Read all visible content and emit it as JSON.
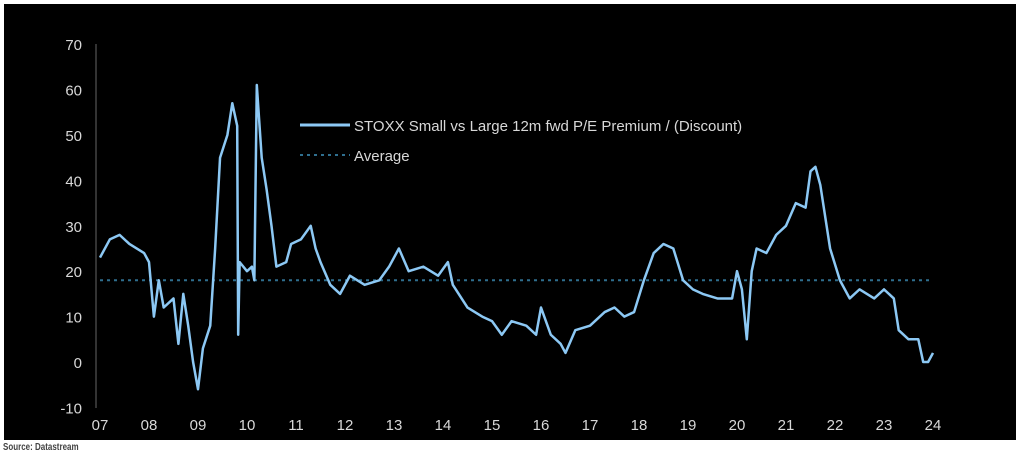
{
  "chart_data": {
    "type": "line",
    "title": "",
    "xlabel": "",
    "ylabel": "",
    "ylim": [
      -10,
      70
    ],
    "yticks": [
      "70",
      "60",
      "50",
      "40",
      "30",
      "20",
      "10",
      "0",
      "-10"
    ],
    "xticks": [
      "07",
      "08",
      "09",
      "10",
      "11",
      "12",
      "13",
      "14",
      "15",
      "16",
      "17",
      "18",
      "19",
      "20",
      "21",
      "22",
      "23",
      "24"
    ],
    "xlim": [
      2007,
      2024
    ],
    "legend": {
      "placement": "top-center",
      "entries": [
        "STOXX Small vs Large 12m fwd P/E Premium / (Discount)",
        "Average"
      ]
    },
    "series": [
      {
        "name": "STOXX Small vs Large 12m fwd P/E Premium / (Discount)",
        "color": "#8cc8f4",
        "x": [
          2007.0,
          2007.2,
          2007.4,
          2007.6,
          2007.9,
          2008.0,
          2008.1,
          2008.2,
          2008.3,
          2008.5,
          2008.6,
          2008.7,
          2008.8,
          2008.9,
          2009.0,
          2009.1,
          2009.25,
          2009.35,
          2009.45,
          2009.6,
          2009.7,
          2009.8,
          2009.82,
          2009.85,
          2010.0,
          2010.1,
          2010.15,
          2010.2,
          2010.3,
          2010.4,
          2010.5,
          2010.6,
          2010.8,
          2010.9,
          2011.1,
          2011.3,
          2011.4,
          2011.5,
          2011.7,
          2011.9,
          2012.1,
          2012.4,
          2012.7,
          2012.9,
          2013.1,
          2013.3,
          2013.6,
          2013.9,
          2014.1,
          2014.2,
          2014.5,
          2014.8,
          2015.0,
          2015.2,
          2015.4,
          2015.7,
          2015.9,
          2016.0,
          2016.2,
          2016.4,
          2016.5,
          2016.7,
          2017.0,
          2017.3,
          2017.5,
          2017.7,
          2017.9,
          2018.1,
          2018.3,
          2018.5,
          2018.7,
          2018.9,
          2019.1,
          2019.3,
          2019.6,
          2019.9,
          2020.0,
          2020.1,
          2020.2,
          2020.3,
          2020.4,
          2020.6,
          2020.8,
          2021.0,
          2021.2,
          2021.4,
          2021.5,
          2021.6,
          2021.7,
          2021.9,
          2022.1,
          2022.3,
          2022.5,
          2022.8,
          2023.0,
          2023.2,
          2023.3,
          2023.5,
          2023.7,
          2023.8,
          2023.9,
          2024.0
        ],
        "values": [
          23,
          27,
          28,
          26,
          24,
          22,
          10,
          18,
          12,
          14,
          4,
          15,
          8,
          0,
          -6,
          3,
          8,
          25,
          45,
          50,
          57,
          52,
          6,
          22,
          20,
          21,
          18,
          61,
          45,
          38,
          30,
          21,
          22,
          26,
          27,
          30,
          25,
          22,
          17,
          15,
          19,
          17,
          18,
          21,
          25,
          20,
          21,
          19,
          22,
          17,
          12,
          10,
          9,
          6,
          9,
          8,
          6,
          12,
          6,
          4,
          2,
          7,
          8,
          11,
          12,
          10,
          11,
          18,
          24,
          26,
          25,
          18,
          16,
          15,
          14,
          14,
          20,
          16,
          5,
          20,
          25,
          24,
          28,
          30,
          35,
          34,
          42,
          43,
          39,
          25,
          18,
          14,
          16,
          14,
          16,
          14,
          7,
          5,
          5,
          0,
          0,
          2
        ]
      },
      {
        "name": "Average",
        "color": "#2f6f8f",
        "x": [
          2007,
          2024
        ],
        "values": [
          18,
          18
        ]
      }
    ]
  },
  "source": "Source: Datastream"
}
